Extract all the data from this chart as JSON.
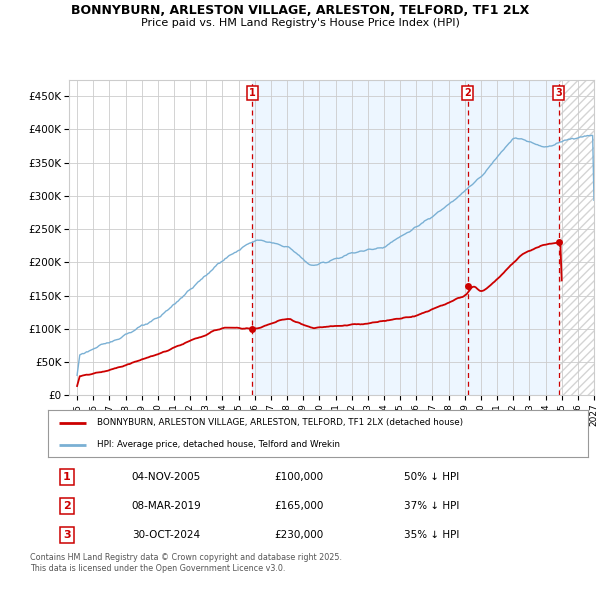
{
  "title": "BONNYBURN, ARLESTON VILLAGE, ARLESTON, TELFORD, TF1 2LX",
  "subtitle": "Price paid vs. HM Land Registry's House Price Index (HPI)",
  "hpi_color": "#7ab0d4",
  "price_color": "#cc0000",
  "sale_points": [
    {
      "label": "1",
      "year": 2005.84,
      "price": 100000,
      "date": "04-NOV-2005",
      "hpi_pct": "50% ↓ HPI"
    },
    {
      "label": "2",
      "year": 2019.18,
      "price": 165000,
      "date": "08-MAR-2019",
      "hpi_pct": "37% ↓ HPI"
    },
    {
      "label": "3",
      "year": 2024.83,
      "price": 230000,
      "date": "30-OCT-2024",
      "hpi_pct": "35% ↓ HPI"
    }
  ],
  "vline_color": "#cc0000",
  "vline_style": "--",
  "xlim": [
    1994.5,
    2027.0
  ],
  "ylim": [
    0,
    475000
  ],
  "yticks": [
    0,
    50000,
    100000,
    150000,
    200000,
    250000,
    300000,
    350000,
    400000,
    450000
  ],
  "ytick_labels": [
    "£0",
    "£50K",
    "£100K",
    "£150K",
    "£200K",
    "£250K",
    "£300K",
    "£350K",
    "£400K",
    "£450K"
  ],
  "xticks": [
    1995,
    1996,
    1997,
    1998,
    1999,
    2000,
    2001,
    2002,
    2003,
    2004,
    2005,
    2006,
    2007,
    2008,
    2009,
    2010,
    2011,
    2012,
    2013,
    2014,
    2015,
    2016,
    2017,
    2018,
    2019,
    2020,
    2021,
    2022,
    2023,
    2024,
    2025,
    2026,
    2027
  ],
  "footnote": "Contains HM Land Registry data © Crown copyright and database right 2025.\nThis data is licensed under the Open Government Licence v3.0.",
  "legend_price_label": "BONNYBURN, ARLESTON VILLAGE, ARLESTON, TELFORD, TF1 2LX (detached house)",
  "legend_hpi_label": "HPI: Average price, detached house, Telford and Wrekin",
  "background_color": "#ffffff",
  "grid_color": "#cccccc",
  "shaded_color": "#ddeeff",
  "hatched_color": "#e8e8e8",
  "shaded_start": 2005.84,
  "hatched_start": 2024.83
}
